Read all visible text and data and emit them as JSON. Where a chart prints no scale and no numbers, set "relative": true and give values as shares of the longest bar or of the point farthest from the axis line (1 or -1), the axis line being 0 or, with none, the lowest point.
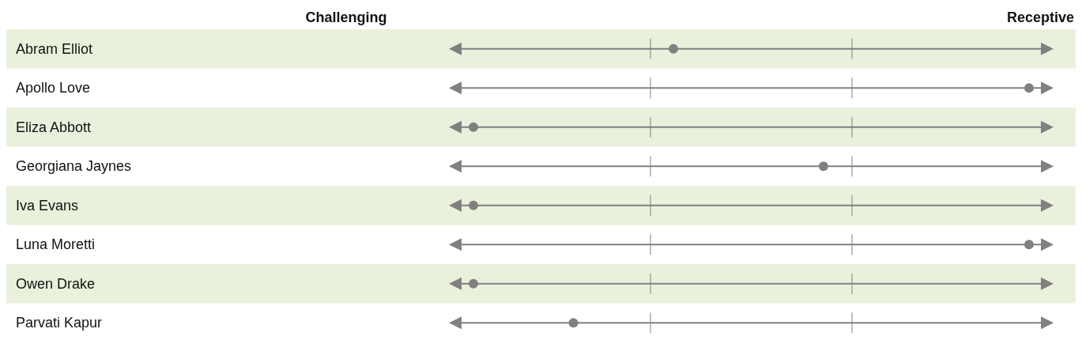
{
  "chart_data": {
    "type": "scatter",
    "orientation": "horizontal",
    "relative": true,
    "marker": "circle",
    "color": "#808080",
    "categories": [
      "Abram Elliot",
      "Apollo Love",
      "Eliza Abbott",
      "Georgiana Jaynes",
      "Iva Evans",
      "Luna Moretti",
      "Owen Drake",
      "Parvati Kapur"
    ],
    "values": [
      0.36,
      1,
      0,
      0.63,
      0,
      1,
      0,
      0.18
    ],
    "annotations": [
      "Challenging",
      "Receptive"
    ]
  }
}
